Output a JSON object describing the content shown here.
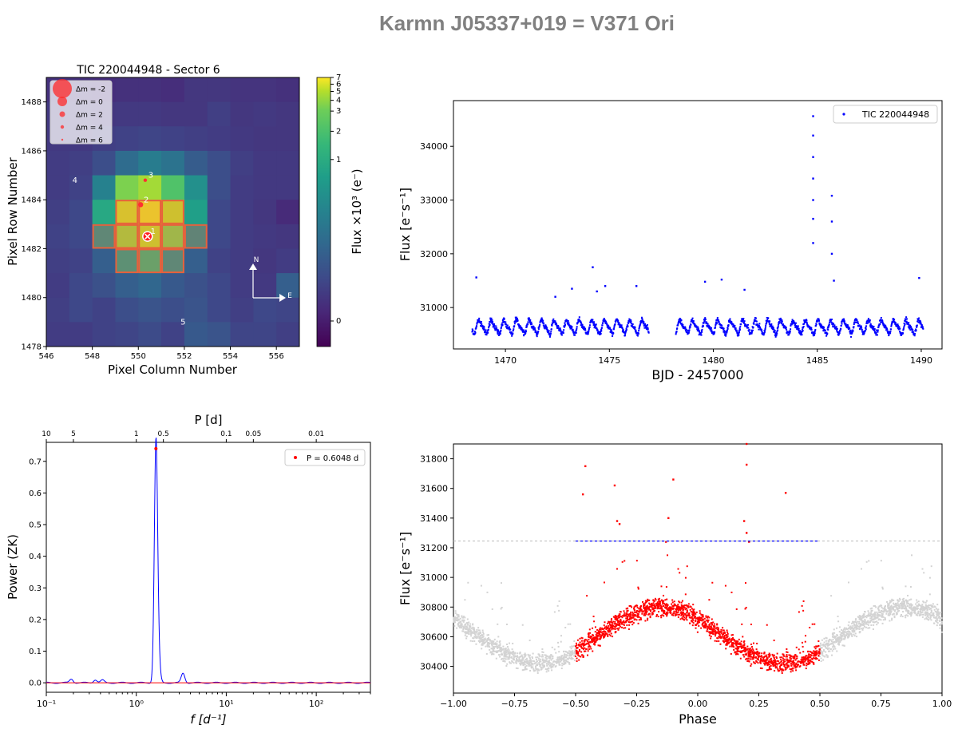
{
  "figure": {
    "title": "Karmn J05337+019 = V371 Ori"
  },
  "chart_data": [
    {
      "id": "tpf",
      "type": "heatmap",
      "title": "TIC 220044948 - Sector 6",
      "xlabel": "Pixel Column Number",
      "ylabel": "Pixel Row Number",
      "xlim": [
        546,
        557
      ],
      "ylim": [
        1478,
        1489
      ],
      "xticks": [
        546,
        548,
        550,
        552,
        554,
        556
      ],
      "yticks": [
        1478,
        1480,
        1482,
        1484,
        1486,
        1488
      ],
      "col_start": 546,
      "row_start": 1478,
      "grid": [
        [
          0.14,
          0.14,
          0.13,
          0.14,
          0.14,
          0.13,
          0.16,
          0.16,
          0.15,
          0.15,
          0.14
        ],
        [
          0.17,
          0.17,
          0.16,
          0.17,
          0.17,
          0.16,
          0.16,
          0.19,
          0.16,
          0.17,
          0.16
        ],
        [
          0.17,
          0.17,
          0.19,
          0.2,
          0.21,
          0.2,
          0.19,
          0.18,
          0.17,
          0.16,
          0.16
        ],
        [
          0.18,
          0.19,
          0.24,
          0.35,
          0.42,
          0.38,
          0.29,
          0.24,
          0.19,
          0.17,
          0.17
        ],
        [
          0.18,
          0.2,
          0.44,
          0.8,
          0.86,
          0.72,
          0.5,
          0.24,
          0.18,
          0.17,
          0.17
        ],
        [
          0.19,
          0.22,
          0.6,
          0.92,
          0.96,
          0.9,
          0.56,
          0.22,
          0.18,
          0.16,
          0.12
        ],
        [
          0.2,
          0.22,
          0.5,
          0.84,
          0.9,
          0.8,
          0.48,
          0.22,
          0.18,
          0.17,
          0.16
        ],
        [
          0.19,
          0.2,
          0.3,
          0.55,
          0.65,
          0.5,
          0.3,
          0.2,
          0.18,
          0.16,
          0.18
        ],
        [
          0.18,
          0.22,
          0.25,
          0.3,
          0.33,
          0.28,
          0.25,
          0.22,
          0.18,
          0.17,
          0.3
        ],
        [
          0.19,
          0.22,
          0.2,
          0.24,
          0.26,
          0.24,
          0.26,
          0.22,
          0.19,
          0.22,
          0.21
        ],
        [
          0.18,
          0.18,
          0.2,
          0.21,
          0.23,
          0.2,
          0.28,
          0.26,
          0.21,
          0.21,
          0.19
        ]
      ],
      "aperture": [
        [
          549,
          1481
        ],
        [
          550,
          1481
        ],
        [
          551,
          1481
        ],
        [
          548,
          1482
        ],
        [
          549,
          1482
        ],
        [
          550,
          1482
        ],
        [
          551,
          1482
        ],
        [
          552,
          1482
        ],
        [
          549,
          1483
        ],
        [
          550,
          1483
        ],
        [
          551,
          1483
        ]
      ],
      "stars": [
        {
          "label": "1",
          "x": 550.4,
          "y": 1482.5,
          "target": true
        },
        {
          "label": "2",
          "x": 550.1,
          "y": 1483.8
        },
        {
          "label": "3",
          "x": 550.3,
          "y": 1484.8
        },
        {
          "label": "4",
          "x": 547.0,
          "y": 1484.6
        },
        {
          "label": "5",
          "x": 551.7,
          "y": 1478.8
        }
      ],
      "legend": {
        "placement": "top-left",
        "entries": [
          "Δm = -2",
          "Δm =  0",
          "Δm =  2",
          "Δm =  4",
          "Δm =  6"
        ]
      },
      "colorbar": {
        "label": "Flux ×10³ (e⁻)",
        "tick_labels": [
          "7",
          "6",
          "5",
          "4",
          "3",
          "2",
          "1",
          "0"
        ],
        "tick_fracs": [
          0.0,
          0.025,
          0.052,
          0.085,
          0.125,
          0.2,
          0.305,
          0.905
        ]
      },
      "compass": {
        "north": "N",
        "east": "E"
      }
    },
    {
      "id": "lc",
      "type": "scatter",
      "xlabel": "BJD - 2457000",
      "ylabel": "Flux [e⁻s⁻¹]",
      "xlim": [
        1467.5,
        1491
      ],
      "ylim": [
        30230,
        34850
      ],
      "xticks": [
        1470,
        1475,
        1480,
        1485,
        1490
      ],
      "yticks": [
        31000,
        32000,
        33000,
        34000
      ],
      "legend": {
        "placement": "top-right",
        "entries": [
          "TIC 220044948"
        ]
      },
      "color": "#0000ff",
      "segments": [
        [
          1468.4,
          1476.9
        ],
        [
          1478.2,
          1490.1
        ]
      ],
      "period": 0.6048,
      "t0": 1468.6,
      "mean_flux": 30640,
      "amplitude": 180,
      "flares": [
        [
          1468.6,
          31560
        ],
        [
          1472.4,
          31200
        ],
        [
          1473.2,
          31350
        ],
        [
          1474.2,
          31750
        ],
        [
          1474.4,
          31300
        ],
        [
          1474.8,
          31400
        ],
        [
          1476.3,
          31400
        ],
        [
          1479.6,
          31480
        ],
        [
          1480.4,
          31520
        ],
        [
          1481.5,
          31330
        ],
        [
          1484.8,
          34560
        ],
        [
          1484.8,
          34200
        ],
        [
          1484.8,
          33800
        ],
        [
          1484.8,
          33400
        ],
        [
          1484.8,
          33000
        ],
        [
          1484.8,
          32650
        ],
        [
          1484.8,
          32200
        ],
        [
          1485.7,
          33080
        ],
        [
          1485.7,
          32600
        ],
        [
          1485.7,
          32000
        ],
        [
          1485.8,
          31500
        ],
        [
          1489.9,
          31550
        ]
      ]
    },
    {
      "id": "periodogram",
      "type": "line",
      "xlabel": "f [d⁻¹]",
      "ylabel": "Power (ZK)",
      "top_xlabel": "P [d]",
      "xscale": "log",
      "xlim": [
        0.1,
        400
      ],
      "ylim": [
        -0.03,
        0.76
      ],
      "yticks": [
        0.0,
        0.1,
        0.2,
        0.3,
        0.4,
        0.5,
        0.6,
        0.7
      ],
      "xticks": [
        0.1,
        1,
        10,
        100
      ],
      "xtick_labels": [
        "10⁻¹",
        "10⁰",
        "10¹",
        "10²"
      ],
      "top_ticks": [
        10,
        5,
        1,
        0.5,
        0.1,
        0.05,
        0.01
      ],
      "peak": {
        "x": 1.6534,
        "y": 0.74
      },
      "secondary_peaks": [
        [
          1.75,
          0.075
        ],
        [
          3.307,
          0.03
        ],
        [
          0.19,
          0.012
        ],
        [
          0.35,
          0.01
        ],
        [
          0.42,
          0.008
        ]
      ],
      "legend": {
        "placement": "top-right",
        "entries": [
          "P = 0.6048 d"
        ]
      },
      "colors": {
        "line": "#0000ff",
        "baseline": "#ff0000",
        "peak": "#ff0000"
      }
    },
    {
      "id": "phase",
      "type": "scatter",
      "xlabel": "Phase",
      "ylabel": "Flux [e⁻s⁻¹]",
      "xlim": [
        -1.0,
        1.0
      ],
      "ylim": [
        30220,
        31900
      ],
      "xticks": [
        -1.0,
        -0.75,
        -0.5,
        -0.25,
        0.0,
        0.25,
        0.5,
        0.75,
        1.0
      ],
      "xtick_labels": [
        "−1.00",
        "−0.75",
        "−0.50",
        "−0.25",
        "0.00",
        "0.25",
        "0.50",
        "0.75",
        "1.00"
      ],
      "yticks": [
        30400,
        30600,
        30800,
        31000,
        31200,
        31400,
        31600,
        31800
      ],
      "threshold": 31245,
      "mean_flux": 30610,
      "amplitude": 190,
      "colors": {
        "phased": "#ff0000",
        "wrapped": "#d3d3d3",
        "threshold": "#0000ff"
      },
      "outliers": [
        [
          -0.46,
          31750
        ],
        [
          -0.47,
          31560
        ],
        [
          -0.34,
          31620
        ],
        [
          -0.33,
          31380
        ],
        [
          -0.32,
          31360
        ],
        [
          -0.1,
          31660
        ],
        [
          -0.12,
          31400
        ],
        [
          -0.13,
          31240
        ],
        [
          0.2,
          31760
        ],
        [
          0.19,
          31380
        ],
        [
          0.2,
          31300
        ],
        [
          0.21,
          31240
        ],
        [
          0.36,
          31570
        ],
        [
          0.2,
          31900
        ]
      ]
    }
  ]
}
